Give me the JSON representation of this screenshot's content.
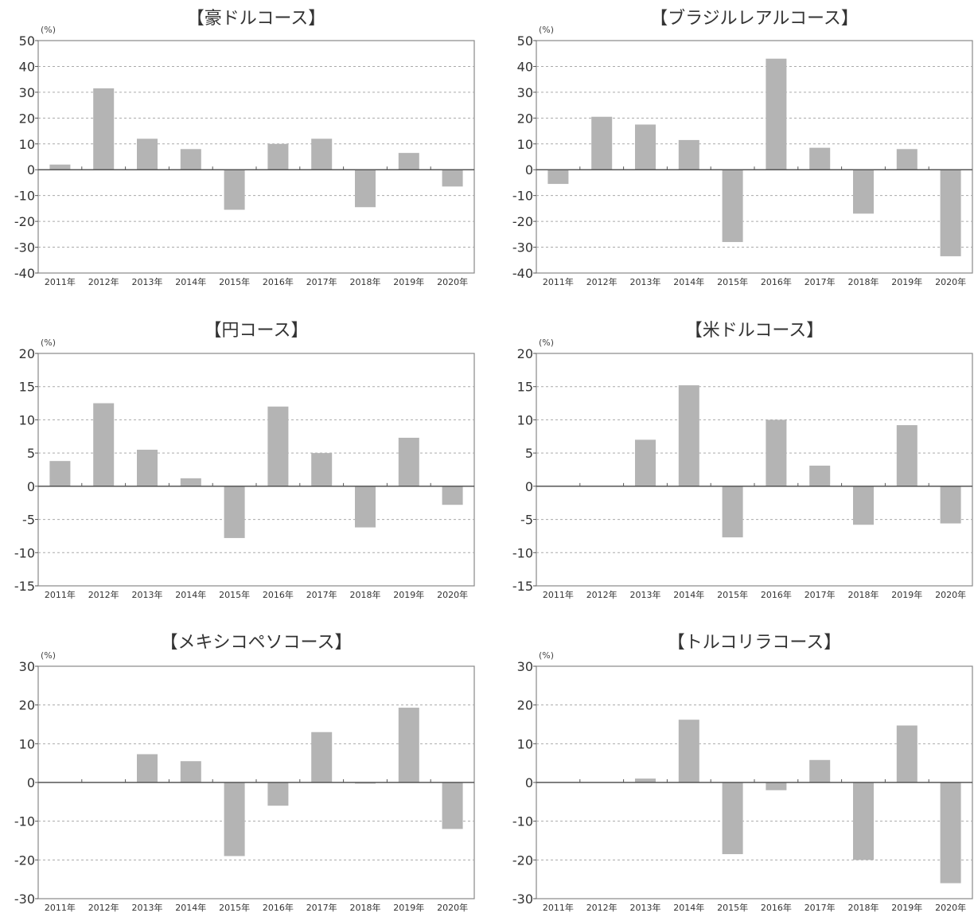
{
  "chart_data": [
    {
      "type": "bar",
      "title": "【豪ドルコース】",
      "unit": "(%)",
      "categories": [
        "2011年",
        "2012年",
        "2013年",
        "2014年",
        "2015年",
        "2016年",
        "2017年",
        "2018年",
        "2019年",
        "2020年"
      ],
      "values": [
        2,
        31.5,
        12,
        8,
        -15.5,
        10,
        12,
        -14.5,
        6.5,
        -6.5
      ],
      "ylim": [
        -40,
        50
      ],
      "yticks": [
        "50",
        "40",
        "30",
        "20",
        "10",
        "0",
        "-10",
        "-20",
        "-30",
        "-40"
      ],
      "grid": true,
      "bar_color": "#b4b4b4"
    },
    {
      "type": "bar",
      "title": "【ブラジルレアルコース】",
      "unit": "(%)",
      "categories": [
        "2011年",
        "2012年",
        "2013年",
        "2014年",
        "2015年",
        "2016年",
        "2017年",
        "2018年",
        "2019年",
        "2020年"
      ],
      "values": [
        -5.5,
        20.5,
        17.5,
        11.5,
        -28,
        43,
        8.5,
        -17,
        8,
        -33.5
      ],
      "ylim": [
        -40,
        50
      ],
      "yticks": [
        "50",
        "40",
        "30",
        "20",
        "10",
        "0",
        "-10",
        "-20",
        "-30",
        "-40"
      ],
      "grid": true,
      "bar_color": "#b4b4b4"
    },
    {
      "type": "bar",
      "title": "【円コース】",
      "unit": "(%)",
      "categories": [
        "2011年",
        "2012年",
        "2013年",
        "2014年",
        "2015年",
        "2016年",
        "2017年",
        "2018年",
        "2019年",
        "2020年"
      ],
      "values": [
        3.8,
        12.5,
        5.5,
        1.2,
        -7.8,
        12,
        5,
        -6.2,
        7.3,
        -2.8
      ],
      "ylim": [
        -15,
        20
      ],
      "yticks": [
        "20",
        "15",
        "10",
        "5",
        "0",
        "-5",
        "-10",
        "-15"
      ],
      "grid": true,
      "bar_color": "#b4b4b4"
    },
    {
      "type": "bar",
      "title": "【米ドルコース】",
      "unit": "(%)",
      "categories": [
        "2011年",
        "2012年",
        "2013年",
        "2014年",
        "2015年",
        "2016年",
        "2017年",
        "2018年",
        "2019年",
        "2020年"
      ],
      "values": [
        0,
        0,
        7,
        15.2,
        -7.7,
        10,
        3.1,
        -5.8,
        9.2,
        -5.6
      ],
      "ylim": [
        -15,
        20
      ],
      "yticks": [
        "20",
        "15",
        "10",
        "5",
        "0",
        "-5",
        "-10",
        "-15"
      ],
      "grid": true,
      "bar_color": "#b4b4b4"
    },
    {
      "type": "bar",
      "title": "【メキシコペソコース】",
      "unit": "(%)",
      "categories": [
        "2011年",
        "2012年",
        "2013年",
        "2014年",
        "2015年",
        "2016年",
        "2017年",
        "2018年",
        "2019年",
        "2020年"
      ],
      "values": [
        0,
        0,
        7.3,
        5.5,
        -19,
        -6,
        13,
        -0.3,
        19.3,
        -12
      ],
      "ylim": [
        -30,
        30
      ],
      "yticks": [
        "30",
        "20",
        "10",
        "0",
        "-10",
        "-20",
        "-30"
      ],
      "grid": true,
      "bar_color": "#b4b4b4"
    },
    {
      "type": "bar",
      "title": "【トルコリラコース】",
      "unit": "(%)",
      "categories": [
        "2011年",
        "2012年",
        "2013年",
        "2014年",
        "2015年",
        "2016年",
        "2017年",
        "2018年",
        "2019年",
        "2020年"
      ],
      "values": [
        0,
        0,
        1,
        16.2,
        -18.5,
        -2,
        5.8,
        -20,
        14.7,
        -26
      ],
      "ylim": [
        -30,
        30
      ],
      "yticks": [
        "30",
        "20",
        "10",
        "0",
        "-10",
        "-20",
        "-30"
      ],
      "grid": true,
      "bar_color": "#b4b4b4"
    }
  ]
}
